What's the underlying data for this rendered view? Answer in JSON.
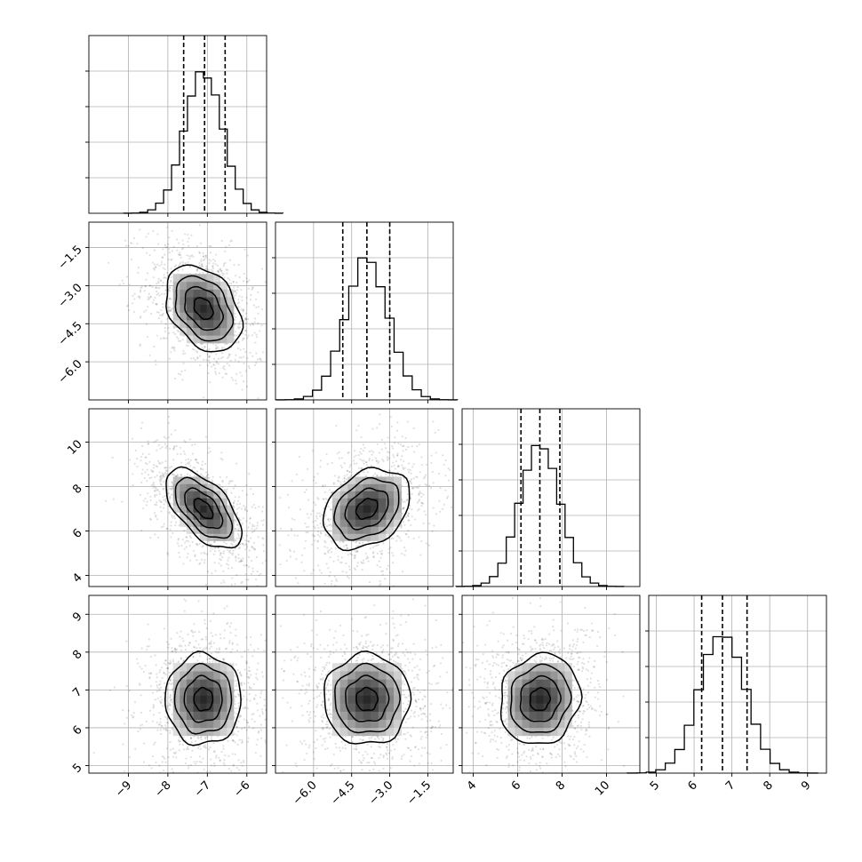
{
  "chart_data": {
    "type": "corner",
    "dimensions": 4,
    "params": [
      {
        "range": [
          -10,
          -5.5
        ],
        "ticks": [
          -9,
          -8,
          -7,
          -6
        ],
        "tick_labels": [
          "−9",
          "−8",
          "−7",
          "−6"
        ],
        "mean": -7.1,
        "sd": 0.48,
        "quantiles": [
          -7.6,
          -7.07,
          -6.55
        ],
        "hist_ylim": [
          0,
          1.25
        ]
      },
      {
        "range": [
          -7.5,
          -0.5
        ],
        "ticks": [
          -6.0,
          -4.5,
          -3.0,
          -1.5
        ],
        "tick_labels": [
          "−6.0",
          "−4.5",
          "−3.0",
          "−1.5"
        ],
        "mean": -3.9,
        "sd": 0.85,
        "quantiles": [
          -4.85,
          -3.9,
          -3.0
        ],
        "hist_ylim": [
          0,
          1.25
        ]
      },
      {
        "range": [
          3.5,
          11.5
        ],
        "ticks": [
          4,
          6,
          8,
          10
        ],
        "tick_labels": [
          "4",
          "6",
          "8",
          "10"
        ],
        "mean": 7.0,
        "sd": 0.9,
        "quantiles": [
          6.15,
          7.0,
          7.9
        ],
        "hist_ylim": [
          0,
          1.25
        ]
      },
      {
        "range": [
          4.8,
          9.5
        ],
        "ticks": [
          5,
          6,
          7,
          8,
          9
        ],
        "tick_labels": [
          "5",
          "6",
          "7",
          "8",
          "9"
        ],
        "mean": 6.75,
        "sd": 0.6,
        "quantiles": [
          6.2,
          6.75,
          7.4
        ],
        "hist_ylim": [
          0,
          1.25
        ]
      }
    ],
    "correlations": {
      "1-0": -0.35,
      "2-0": -0.6,
      "2-1": 0.3,
      "3-0": 0.0,
      "3-1": 0.0,
      "3-2": 0.1
    },
    "contour_levels_sigma": [
      0.5,
      1.0,
      1.5,
      2.0
    ],
    "grid": true,
    "colors": {
      "points": "#000000",
      "lines": "#000000",
      "grid": "#b0b0b0"
    }
  }
}
